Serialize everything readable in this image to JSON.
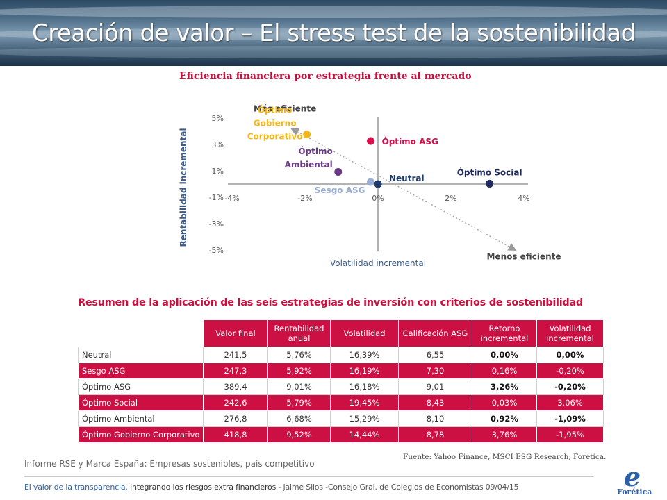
{
  "header": {
    "title": "Creación de valor – El stress test de la sostenibilidad"
  },
  "chart_data": {
    "type": "scatter",
    "title": "Eficiencia financiera por estrategia frente al mercado",
    "xlabel": "Volatilidad incremental",
    "ylabel": "Rentabilidad incremental",
    "xlim": [
      -4,
      4
    ],
    "ylim": [
      -5,
      5
    ],
    "x_ticks": [
      -4,
      -2,
      0,
      2,
      4
    ],
    "x_tick_labels": [
      "-4%",
      "-2%",
      "0%",
      "2%",
      "4%"
    ],
    "y_ticks": [
      5,
      3,
      1,
      -1,
      -3,
      -5
    ],
    "y_tick_labels": [
      "5%",
      "3%",
      "1%",
      "-1%",
      "-3%",
      "-5%"
    ],
    "annotations": {
      "top": "Más eficiente",
      "bottom": "Menos eficiente"
    },
    "points": [
      {
        "label": "Neutral",
        "lines": [
          "Neutral"
        ],
        "x": 0.0,
        "y": 0.0,
        "color": "#1f3b6e"
      },
      {
        "label": "Sesgo ASG",
        "lines": [
          "Sesgo ASG"
        ],
        "x": -0.2,
        "y": 0.16,
        "color": "#9aaed3"
      },
      {
        "label": "Óptimo ASG",
        "lines": [
          "Óptimo ASG"
        ],
        "x": -0.2,
        "y": 3.26,
        "color": "#d7104a"
      },
      {
        "label": "Óptimo Social",
        "lines": [
          "Óptimo Social"
        ],
        "x": 3.06,
        "y": 0.03,
        "color": "#1f2b5e"
      },
      {
        "label": "Óptimo Ambiental",
        "lines": [
          "Óptimo",
          "Ambiental"
        ],
        "x": -1.09,
        "y": 0.92,
        "color": "#6b3a86"
      },
      {
        "label": "Óptimo Gobierno Corporativo",
        "lines": [
          "Óptimo",
          "Gobierno",
          "Corporativo"
        ],
        "x": -1.95,
        "y": 3.76,
        "color": "#f4b61a"
      }
    ]
  },
  "table": {
    "title": "Resumen de la aplicación de las seis estrategias de inversión con criterios de sostenibilidad",
    "headers": [
      "",
      "Valor final",
      "Rentabilidad anual",
      "Volatilidad",
      "Calificación ASG",
      "Retorno incremental",
      "Volatilidad incremental"
    ],
    "rows": [
      [
        "Neutral",
        "241,5",
        "5,76%",
        "16,39%",
        "6,55",
        "0,00%",
        "0,00%"
      ],
      [
        "Sesgo ASG",
        "247,3",
        "5,92%",
        "16,19%",
        "7,30",
        "0,16%",
        "-0,20%"
      ],
      [
        "Óptimo ASG",
        "389,4",
        "9,01%",
        "16,18%",
        "9,01",
        "3,26%",
        "-0,20%"
      ],
      [
        "Óptimo Social",
        "242,6",
        "5,79%",
        "19,45%",
        "8,43",
        "0,03%",
        "3,06%"
      ],
      [
        "Óptimo Ambiental",
        "276,8",
        "6,68%",
        "15,29%",
        "8,10",
        "0,92%",
        "-1,09%"
      ],
      [
        "Óptimo Gobierno Corporativo",
        "418,8",
        "9,52%",
        "14,44%",
        "8,78",
        "3,76%",
        "-1,95%"
      ]
    ]
  },
  "source": "Fuente: Yahoo Finance, MSCI ESG Research, Forética.",
  "report": "Informe RSE y Marca España: Empresas sostenibles, país competitivo",
  "footer": {
    "part1": "El valor de la transparencia.",
    "part2": " Integrando los riesgos extra financieros",
    "part3": " - Jaime Silos  -Consejo Gral. de Colegios de Economistas 09/04/15"
  },
  "logo": {
    "letter": "e",
    "text": "Forética"
  },
  "colors": {
    "accent": "#cd1043",
    "footer_blue": "#2b5fa8"
  }
}
